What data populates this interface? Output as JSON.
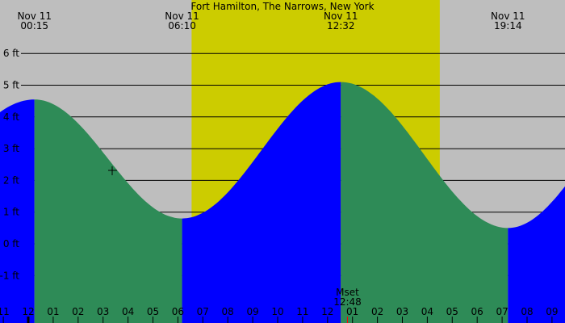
{
  "chart_data": {
    "type": "area",
    "title": "Fort Hamilton, The Narrows, New York",
    "y_unit": "ft",
    "ylim": [
      -1.5,
      7.0
    ],
    "y_ticks": [
      6,
      5,
      4,
      3,
      2,
      1,
      0,
      -1
    ],
    "y_tick_labels": [
      "6 ft",
      "5 ft",
      "4 ft",
      "3 ft",
      "2 ft",
      "1 ft",
      "0 ft",
      "-1 ft"
    ],
    "grid": true,
    "x_tick_labels": [
      "11",
      "12",
      "01",
      "02",
      "03",
      "04",
      "05",
      "06",
      "07",
      "08",
      "09",
      "10",
      "11",
      "12",
      "01",
      "02",
      "03",
      "04",
      "05",
      "06",
      "07",
      "08",
      "09"
    ],
    "extremes": [
      {
        "type": "high",
        "date": "Nov 11",
        "time": "00:15",
        "height": 4.55
      },
      {
        "type": "low",
        "date": "Nov 11",
        "time": "06:10",
        "height": 0.8
      },
      {
        "type": "high",
        "date": "Nov 11",
        "time": "12:32",
        "height": 5.1
      },
      {
        "type": "low",
        "date": "Nov 11",
        "time": "19:14",
        "height": 0.5
      }
    ],
    "daylight": {
      "start": "06:33",
      "end": "16:30"
    },
    "moon_event": {
      "label": "Mset",
      "time": "12:48"
    },
    "colors": {
      "background": "#bebebe",
      "daylight": "#cccc00",
      "rising": "#0000ff",
      "falling": "#2e8b57",
      "moon_tick": "#ff0000"
    }
  }
}
